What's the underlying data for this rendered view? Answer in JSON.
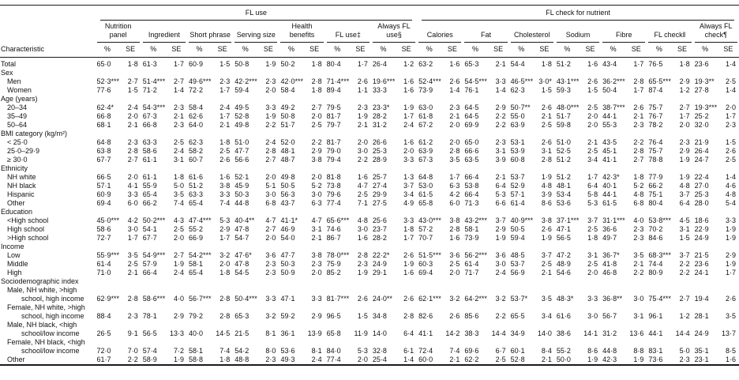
{
  "table": {
    "characteristic_header": "Characteristic",
    "pct_label": "%",
    "se_label": "SE",
    "groups": [
      {
        "label": "FL use",
        "columns": [
          "Nutrition panel",
          "Ingredient",
          "Short phrase",
          "Serving size",
          "Health benefits",
          "FL use‡",
          "Always FL use§"
        ]
      },
      {
        "label": "FL check for nutrient",
        "columns": [
          "Calories",
          "Fat",
          "Cholesterol",
          "Sodium",
          "Fibre",
          "FL check‖",
          "Always FL check¶"
        ]
      }
    ],
    "rows": [
      {
        "type": "data",
        "indent": 0,
        "label": "Total",
        "values": [
          "65·0",
          "1·8",
          "61·3",
          "1·7",
          "60·9",
          "1·5",
          "50·8",
          "1·9",
          "50·2",
          "1·8",
          "80·4",
          "1·7",
          "26·4",
          "1·2",
          "63·2",
          "1·6",
          "65·3",
          "2·1",
          "54·4",
          "1·8",
          "51·2",
          "1·6",
          "43·4",
          "1·7",
          "76·5",
          "1·8",
          "23·6",
          "1·4"
        ]
      },
      {
        "type": "section",
        "label": "Sex"
      },
      {
        "type": "data",
        "indent": 1,
        "label": "Men",
        "values": [
          "52·3***",
          "2·7",
          "51·4***",
          "2·7",
          "49·6***",
          "2·3",
          "42·2***",
          "2·3",
          "42·0***",
          "2·8",
          "71·4***",
          "2·6",
          "19·6***",
          "1·6",
          "52·4***",
          "2·6",
          "54·5***",
          "3·3",
          "46·5***",
          "3·0*",
          "43·1***",
          "2·6",
          "36·2***",
          "2·8",
          "65·5***",
          "2·9",
          "19·3**",
          "2·5"
        ]
      },
      {
        "type": "data",
        "indent": 1,
        "label": "Women",
        "values": [
          "77·6",
          "1·5",
          "71·2",
          "1·4",
          "72·2",
          "1·7",
          "59·4",
          "2·0",
          "58·4",
          "1·8",
          "89·4",
          "1·1",
          "33·3",
          "1·6",
          "73·9",
          "1·4",
          "76·1",
          "1·4",
          "62·3",
          "1·5",
          "59·3",
          "1·5",
          "50·4",
          "1·7",
          "87·4",
          "1·2",
          "27·8",
          "1·4"
        ]
      },
      {
        "type": "section",
        "label": "Age (years)"
      },
      {
        "type": "data",
        "indent": 1,
        "label": "20–34",
        "values": [
          "62·4*",
          "2·4",
          "54·3***",
          "2·3",
          "58·4",
          "2·4",
          "49·5",
          "3·3",
          "49·2",
          "2·7",
          "79·5",
          "2·3",
          "23·3*",
          "1·9",
          "63·0",
          "2·3",
          "64·5",
          "2·9",
          "50·7**",
          "2·6",
          "48·0***",
          "2·5",
          "38·7***",
          "2·6",
          "75·7",
          "2·7",
          "19·3***",
          "2·0"
        ]
      },
      {
        "type": "data",
        "indent": 1,
        "label": "35–49",
        "values": [
          "66·8",
          "2·0",
          "67·3",
          "2·1",
          "62·6",
          "1·7",
          "52·8",
          "1·9",
          "50·8",
          "2·0",
          "81·7",
          "1·9",
          "28·2",
          "1·7",
          "61·8",
          "2·1",
          "64·5",
          "2·2",
          "55·0",
          "2·1",
          "51·7",
          "2·0",
          "44·1",
          "2·1",
          "76·7",
          "1·7",
          "25·2",
          "1·7"
        ]
      },
      {
        "type": "data",
        "indent": 1,
        "label": "50–64",
        "values": [
          "68·1",
          "2·1",
          "66·8",
          "2·3",
          "64·0",
          "2·1",
          "49·8",
          "2·2",
          "51·7",
          "2·5",
          "79·7",
          "2·1",
          "31·2",
          "2·4",
          "67·2",
          "2·0",
          "69·9",
          "2·2",
          "63·9",
          "2·5",
          "59·8",
          "2·0",
          "55·3",
          "2·3",
          "78·2",
          "2·0",
          "32·0",
          "2·3"
        ]
      },
      {
        "type": "section",
        "label": "BMI category (kg/m²)"
      },
      {
        "type": "data",
        "indent": 1,
        "label": "< 25·0",
        "values": [
          "64·8",
          "2·3",
          "63·3",
          "2·5",
          "62·3",
          "1·8",
          "51·0",
          "2·4",
          "52·0",
          "2·2",
          "81·7",
          "2·0",
          "26·6",
          "1·6",
          "61·2",
          "2·0",
          "65·0",
          "2·3",
          "53·1",
          "2·6",
          "51·0",
          "2·1",
          "43·5",
          "2·2",
          "76·4",
          "2·3",
          "21·9",
          "1·5"
        ]
      },
      {
        "type": "data",
        "indent": 1,
        "label": "25·0–29·9",
        "values": [
          "63·8",
          "2·8",
          "58·6",
          "2·4",
          "58·2",
          "2·5",
          "47·7",
          "2·8",
          "48·1",
          "2·9",
          "79·0",
          "3·0",
          "25·3",
          "2·0",
          "63·9",
          "2·8",
          "66·6",
          "3·1",
          "53·9",
          "3·1",
          "52·5",
          "2·5",
          "45·1",
          "2·8",
          "75·7",
          "2·9",
          "26·4",
          "2·6"
        ]
      },
      {
        "type": "data",
        "indent": 1,
        "label": "≥ 30·0",
        "values": [
          "67·7",
          "2·7",
          "61·1",
          "3·1",
          "60·7",
          "2·6",
          "56·6",
          "2·7",
          "48·7",
          "3·8",
          "79·4",
          "2·2",
          "28·9",
          "3·3",
          "67·3",
          "3·5",
          "63·5",
          "3·9",
          "60·8",
          "2·8",
          "51·2",
          "3·4",
          "41·1",
          "2·7",
          "78·8",
          "1·9",
          "24·7",
          "2·5"
        ]
      },
      {
        "type": "section",
        "label": "Ethnicity"
      },
      {
        "type": "data",
        "indent": 1,
        "label": "NH white",
        "values": [
          "66·5",
          "2·0",
          "61·1",
          "1·8",
          "61·6",
          "1·6",
          "52·1",
          "2·0",
          "49·8",
          "2·0",
          "81·8",
          "1·6",
          "25·7",
          "1·3",
          "64·8",
          "1·7",
          "66·4",
          "2·1",
          "53·7",
          "1·9",
          "51·2",
          "1·7",
          "42·3*",
          "1·8",
          "77·9",
          "1·9",
          "22·4",
          "1·4"
        ]
      },
      {
        "type": "data",
        "indent": 1,
        "label": "NH black",
        "values": [
          "57·1",
          "4·1",
          "55·9",
          "5·0",
          "51·2",
          "3·8",
          "45·9",
          "5·1",
          "50·5",
          "5·2",
          "73·8",
          "4·7",
          "27·4",
          "3·7",
          "53·0",
          "6·3",
          "53·8",
          "6·4",
          "52·9",
          "4·8",
          "48·1",
          "6·4",
          "40·1",
          "5·2",
          "66·2",
          "4·8",
          "27·0",
          "4·6"
        ]
      },
      {
        "type": "data",
        "indent": 1,
        "label": "Hispanic",
        "values": [
          "60·9",
          "3·3",
          "65·4",
          "3·5",
          "63·3",
          "3·3",
          "50·3",
          "3·0",
          "56·3",
          "3·0",
          "79·6",
          "2·5",
          "29·9",
          "3·4",
          "61·5",
          "4·2",
          "66·4",
          "5·3",
          "57·1",
          "3·9",
          "53·4",
          "5·8",
          "44·1",
          "4·8",
          "75·1",
          "3·7",
          "25·3",
          "4·8"
        ]
      },
      {
        "type": "data",
        "indent": 1,
        "label": "Other",
        "values": [
          "69·4",
          "6·0",
          "66·2",
          "7·4",
          "65·4",
          "7·4",
          "44·8",
          "6·8",
          "43·7",
          "6·3",
          "77·4",
          "7·1",
          "27·5",
          "4·9",
          "65·8",
          "6·0",
          "71·3",
          "6·6",
          "61·4",
          "8·6",
          "53·6",
          "5·3",
          "61·5",
          "6·8",
          "80·4",
          "6·4",
          "28·0",
          "5·4"
        ]
      },
      {
        "type": "section",
        "label": "Education"
      },
      {
        "type": "data",
        "indent": 1,
        "label": "<High school",
        "values": [
          "45·0***",
          "4·2",
          "50·2***",
          "4·3",
          "47·4***",
          "5·3",
          "40·4**",
          "4·7",
          "41·1*",
          "4·7",
          "65·6***",
          "4·8",
          "25·6",
          "3·3",
          "43·0***",
          "3·8",
          "43·2***",
          "3·7",
          "40·9***",
          "3·8",
          "37·1***",
          "3·7",
          "31·1***",
          "4·0",
          "53·8***",
          "4·5",
          "18·6",
          "3·3"
        ]
      },
      {
        "type": "data",
        "indent": 1,
        "label": "High school",
        "values": [
          "58·6",
          "3·0",
          "54·1",
          "2·5",
          "55·2",
          "2·9",
          "47·8",
          "2·7",
          "46·9",
          "3·1",
          "74·6",
          "3·0",
          "23·7",
          "1·8",
          "57·2",
          "2·8",
          "58·1",
          "2·9",
          "50·5",
          "2·6",
          "47·1",
          "2·5",
          "36·6",
          "2·3",
          "70·2",
          "3·1",
          "22·9",
          "1·9"
        ]
      },
      {
        "type": "data",
        "indent": 1,
        "label": ">High school",
        "values": [
          "72·7",
          "1·7",
          "67·7",
          "2·0",
          "66·9",
          "1·7",
          "54·7",
          "2·0",
          "54·0",
          "2·1",
          "86·7",
          "1·6",
          "28·2",
          "1·7",
          "70·7",
          "1·6",
          "73·9",
          "1·9",
          "59·4",
          "1·9",
          "56·5",
          "1·8",
          "49·7",
          "2·3",
          "84·6",
          "1·5",
          "24·9",
          "1·9"
        ]
      },
      {
        "type": "section",
        "label": "Income"
      },
      {
        "type": "data",
        "indent": 1,
        "label": "Low",
        "values": [
          "55·9***",
          "3·5",
          "54·9***",
          "2·7",
          "54·2***",
          "3·2",
          "47·6*",
          "3·6",
          "47·7",
          "3·8",
          "78·0***",
          "2·8",
          "22·2*",
          "2·6",
          "51·5***",
          "3·6",
          "56·2***",
          "3·6",
          "48·5",
          "3·7",
          "47·2",
          "3·1",
          "36·7*",
          "3·5",
          "68·3***",
          "3·7",
          "21·5",
          "2·9"
        ]
      },
      {
        "type": "data",
        "indent": 1,
        "label": "Middle",
        "values": [
          "61·4",
          "2·5",
          "57·9",
          "1·9",
          "58·1",
          "2·0",
          "47·8",
          "2·3",
          "50·3",
          "2·3",
          "75·9",
          "2·3",
          "24·9",
          "1·9",
          "60·3",
          "2·5",
          "61·4",
          "3·0",
          "53·7",
          "2·5",
          "48·9",
          "2·5",
          "41·8",
          "2·1",
          "74·4",
          "2·2",
          "23·6",
          "1·9"
        ]
      },
      {
        "type": "data",
        "indent": 1,
        "label": "High",
        "values": [
          "71·0",
          "2·1",
          "66·4",
          "2·4",
          "65·4",
          "1·8",
          "54·5",
          "2·3",
          "50·9",
          "2·0",
          "85·2",
          "1·9",
          "29·1",
          "1·6",
          "69·4",
          "2·0",
          "71·7",
          "2·4",
          "56·9",
          "2·1",
          "54·6",
          "2·0",
          "46·8",
          "2·2",
          "80·9",
          "2·2",
          "24·1",
          "1·7"
        ]
      },
      {
        "type": "section",
        "label": "Sociodemographic index"
      },
      {
        "type": "data",
        "indent": 1,
        "label": "Male, NH white, >high school, high income",
        "values": [
          "62·9***",
          "2·8",
          "58·6***",
          "4·0",
          "56·7***",
          "2·8",
          "50·4***",
          "3·3",
          "47·1",
          "3·3",
          "81·7***",
          "2·6",
          "24·0**",
          "2·6",
          "62·1***",
          "3·2",
          "64·2***",
          "3·2",
          "53·7*",
          "3·5",
          "48·3*",
          "3·3",
          "36·8**",
          "3·0",
          "75·4***",
          "2·7",
          "19·4",
          "2·6"
        ]
      },
      {
        "type": "data",
        "indent": 1,
        "label": "Female, NH white, >high school, high income",
        "values": [
          "88·4",
          "2·3",
          "78·1",
          "2·9",
          "79·2",
          "2·8",
          "65·3",
          "3·2",
          "59·2",
          "2·9",
          "96·5",
          "1·5",
          "34·8",
          "2·8",
          "82·6",
          "2·6",
          "85·6",
          "2·2",
          "65·5",
          "3·4",
          "61·6",
          "3·0",
          "56·7",
          "3·1",
          "96·1",
          "1·2",
          "28·1",
          "3·5"
        ]
      },
      {
        "type": "data",
        "indent": 1,
        "label": "Male, NH black, <high school/low income",
        "values": [
          "26·5",
          "9·1",
          "56·5",
          "13·3",
          "40·0",
          "14·5",
          "21·5",
          "8·1",
          "36·1",
          "13·9",
          "65·8",
          "11·9",
          "14·0",
          "6·4",
          "41·1",
          "14·2",
          "38·3",
          "14·4",
          "34·9",
          "14·0",
          "38·6",
          "14·1",
          "31·2",
          "13·6",
          "44·1",
          "14·4",
          "24·9",
          "13·7"
        ]
      },
      {
        "type": "data",
        "indent": 1,
        "label": "Female, NH black, <high school/low income",
        "values": [
          "72·0",
          "7·0",
          "57·4",
          "7·2",
          "58·1",
          "7·4",
          "54·2",
          "8·0",
          "53·6",
          "8·1",
          "84·0",
          "5·3",
          "32·8",
          "6·1",
          "72·4",
          "7·4",
          "69·6",
          "6·7",
          "60·1",
          "8·4",
          "55·2",
          "8·6",
          "44·8",
          "8·8",
          "83·1",
          "5·0",
          "35·1",
          "8·5"
        ]
      },
      {
        "type": "data",
        "indent": 1,
        "label": "Other",
        "values": [
          "61·7",
          "2·2",
          "58·9",
          "1·9",
          "58·8",
          "1·8",
          "48·8",
          "2·3",
          "49·3",
          "2·4",
          "77·4",
          "2·0",
          "25·4",
          "1·4",
          "60·0",
          "2·1",
          "62·2",
          "2·5",
          "52·8",
          "2·1",
          "50·0",
          "1·9",
          "42·3",
          "1·9",
          "73·6",
          "2·3",
          "23·1",
          "1·6"
        ]
      }
    ]
  }
}
